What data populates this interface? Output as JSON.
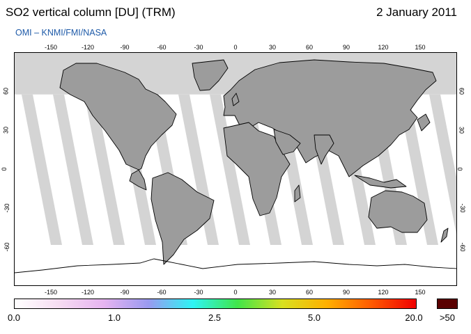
{
  "header": {
    "title": "SO2 vertical column [DU] (TRM)",
    "date": "2 January 2011",
    "credit": "OMI  –  KNMI/FMI/NASA"
  },
  "map": {
    "projection": "equirectangular",
    "lon_range": [
      -180,
      180
    ],
    "lat_range": [
      -90,
      90
    ],
    "lon_ticks": [
      "-150",
      "-120",
      "-90",
      "-60",
      "-30",
      "0",
      "30",
      "60",
      "90",
      "120",
      "150"
    ],
    "lat_ticks": [
      "60",
      "30",
      "0",
      "-30",
      "-60"
    ],
    "no_data_color": "#d4d4d4",
    "land_color": "#9c9c9c",
    "coastline_color": "#000000",
    "polar_no_data_above_lat": 58
  },
  "colorbar": {
    "labels": [
      "0.0",
      "1.0",
      "2.5",
      "5.0",
      "20.0"
    ],
    "overflow_label": ">50",
    "overflow_color": "#5a0000",
    "stops": [
      "#ffffff",
      "#f6dcf2",
      "#e6b4f0",
      "#9a9af0",
      "#2ef4f4",
      "#40e64a",
      "#d8e020",
      "#ffb000",
      "#ff5a00",
      "#f00000"
    ]
  }
}
